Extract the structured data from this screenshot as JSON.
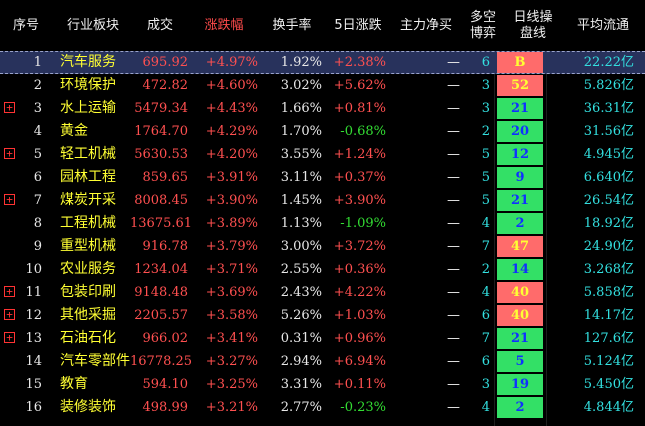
{
  "header": {
    "seq": "序号",
    "sector": "行业板块",
    "volume": "成交",
    "change": "涨跌幅",
    "turnover": "换手率",
    "change5d": "5日涨跌",
    "mainflow": "主力净买",
    "longshort": "多空\n博弈",
    "daily_op": "日线操\n盘线",
    "avg_float": "平均流通"
  },
  "colors": {
    "up": "#ff5050",
    "down": "#33dd33",
    "name": "#ffff33",
    "badge_green": "#33e066",
    "badge_red": "#ff6b6b",
    "selected_row": "#28325c"
  },
  "rows": [
    {
      "idx": "1",
      "name": "汽车服务",
      "volume": "695.92",
      "change": "+4.97%",
      "turnover": "1.92%",
      "change5d": "+2.38%",
      "c5dir": "up",
      "mainflow": "—",
      "longshort": "6",
      "daily": "B",
      "badge": "red",
      "avg": "22.22亿",
      "expandable": false
    },
    {
      "idx": "2",
      "name": "环境保护",
      "volume": "472.82",
      "change": "+4.60%",
      "turnover": "3.02%",
      "change5d": "+5.62%",
      "c5dir": "up",
      "mainflow": "—",
      "longshort": "3",
      "daily": "52",
      "badge": "red",
      "avg": "5.826亿",
      "expandable": false
    },
    {
      "idx": "3",
      "name": "水上运输",
      "volume": "5479.34",
      "change": "+4.43%",
      "turnover": "1.66%",
      "change5d": "+0.81%",
      "c5dir": "up",
      "mainflow": "—",
      "longshort": "3",
      "daily": "21",
      "badge": "green",
      "avg": "36.31亿",
      "expandable": true
    },
    {
      "idx": "4",
      "name": "黄金",
      "volume": "1764.70",
      "change": "+4.29%",
      "turnover": "1.70%",
      "change5d": "-0.68%",
      "c5dir": "down",
      "mainflow": "—",
      "longshort": "2",
      "daily": "20",
      "badge": "green",
      "avg": "31.56亿",
      "expandable": false
    },
    {
      "idx": "5",
      "name": "轻工机械",
      "volume": "5630.53",
      "change": "+4.20%",
      "turnover": "3.55%",
      "change5d": "+1.24%",
      "c5dir": "up",
      "mainflow": "—",
      "longshort": "5",
      "daily": "12",
      "badge": "green",
      "avg": "4.945亿",
      "expandable": true
    },
    {
      "idx": "6",
      "name": "园林工程",
      "volume": "859.65",
      "change": "+3.91%",
      "turnover": "3.11%",
      "change5d": "+0.37%",
      "c5dir": "up",
      "mainflow": "—",
      "longshort": "5",
      "daily": "9",
      "badge": "green",
      "avg": "6.640亿",
      "expandable": false
    },
    {
      "idx": "7",
      "name": "煤炭开采",
      "volume": "8008.45",
      "change": "+3.90%",
      "turnover": "1.45%",
      "change5d": "+3.90%",
      "c5dir": "up",
      "mainflow": "—",
      "longshort": "5",
      "daily": "21",
      "badge": "green",
      "avg": "26.54亿",
      "expandable": true
    },
    {
      "idx": "8",
      "name": "工程机械",
      "volume": "13675.61",
      "change": "+3.89%",
      "turnover": "1.13%",
      "change5d": "-1.09%",
      "c5dir": "down",
      "mainflow": "—",
      "longshort": "4",
      "daily": "2",
      "badge": "green",
      "avg": "18.92亿",
      "expandable": false
    },
    {
      "idx": "9",
      "name": "重型机械",
      "volume": "916.78",
      "change": "+3.79%",
      "turnover": "3.00%",
      "change5d": "+3.72%",
      "c5dir": "up",
      "mainflow": "—",
      "longshort": "7",
      "daily": "47",
      "badge": "red",
      "avg": "24.90亿",
      "expandable": false
    },
    {
      "idx": "10",
      "name": "农业服务",
      "volume": "1234.04",
      "change": "+3.71%",
      "turnover": "2.55%",
      "change5d": "+0.36%",
      "c5dir": "up",
      "mainflow": "—",
      "longshort": "2",
      "daily": "14",
      "badge": "green",
      "avg": "3.268亿",
      "expandable": false
    },
    {
      "idx": "11",
      "name": "包装印刷",
      "volume": "9148.48",
      "change": "+3.69%",
      "turnover": "2.43%",
      "change5d": "+4.22%",
      "c5dir": "up",
      "mainflow": "—",
      "longshort": "4",
      "daily": "40",
      "badge": "red",
      "avg": "5.858亿",
      "expandable": true
    },
    {
      "idx": "12",
      "name": "其他采掘",
      "volume": "2205.57",
      "change": "+3.58%",
      "turnover": "5.26%",
      "change5d": "+1.03%",
      "c5dir": "up",
      "mainflow": "—",
      "longshort": "6",
      "daily": "40",
      "badge": "red",
      "avg": "14.17亿",
      "expandable": true
    },
    {
      "idx": "13",
      "name": "石油石化",
      "volume": "966.02",
      "change": "+3.41%",
      "turnover": "0.31%",
      "change5d": "+0.96%",
      "c5dir": "up",
      "mainflow": "—",
      "longshort": "7",
      "daily": "21",
      "badge": "green",
      "avg": "127.6亿",
      "expandable": true
    },
    {
      "idx": "14",
      "name": "汽车零部件",
      "volume": "16778.25",
      "change": "+3.27%",
      "turnover": "2.94%",
      "change5d": "+6.94%",
      "c5dir": "up",
      "mainflow": "—",
      "longshort": "6",
      "daily": "5",
      "badge": "green",
      "avg": "5.124亿",
      "expandable": false
    },
    {
      "idx": "15",
      "name": "教育",
      "volume": "594.10",
      "change": "+3.25%",
      "turnover": "3.31%",
      "change5d": "+0.11%",
      "c5dir": "up",
      "mainflow": "—",
      "longshort": "3",
      "daily": "19",
      "badge": "green",
      "avg": "5.450亿",
      "expandable": false
    },
    {
      "idx": "16",
      "name": "装修装饰",
      "volume": "498.99",
      "change": "+3.21%",
      "turnover": "2.77%",
      "change5d": "-0.23%",
      "c5dir": "down",
      "mainflow": "—",
      "longshort": "4",
      "daily": "2",
      "badge": "green",
      "avg": "4.844亿",
      "expandable": false
    }
  ],
  "selected_index": 0
}
